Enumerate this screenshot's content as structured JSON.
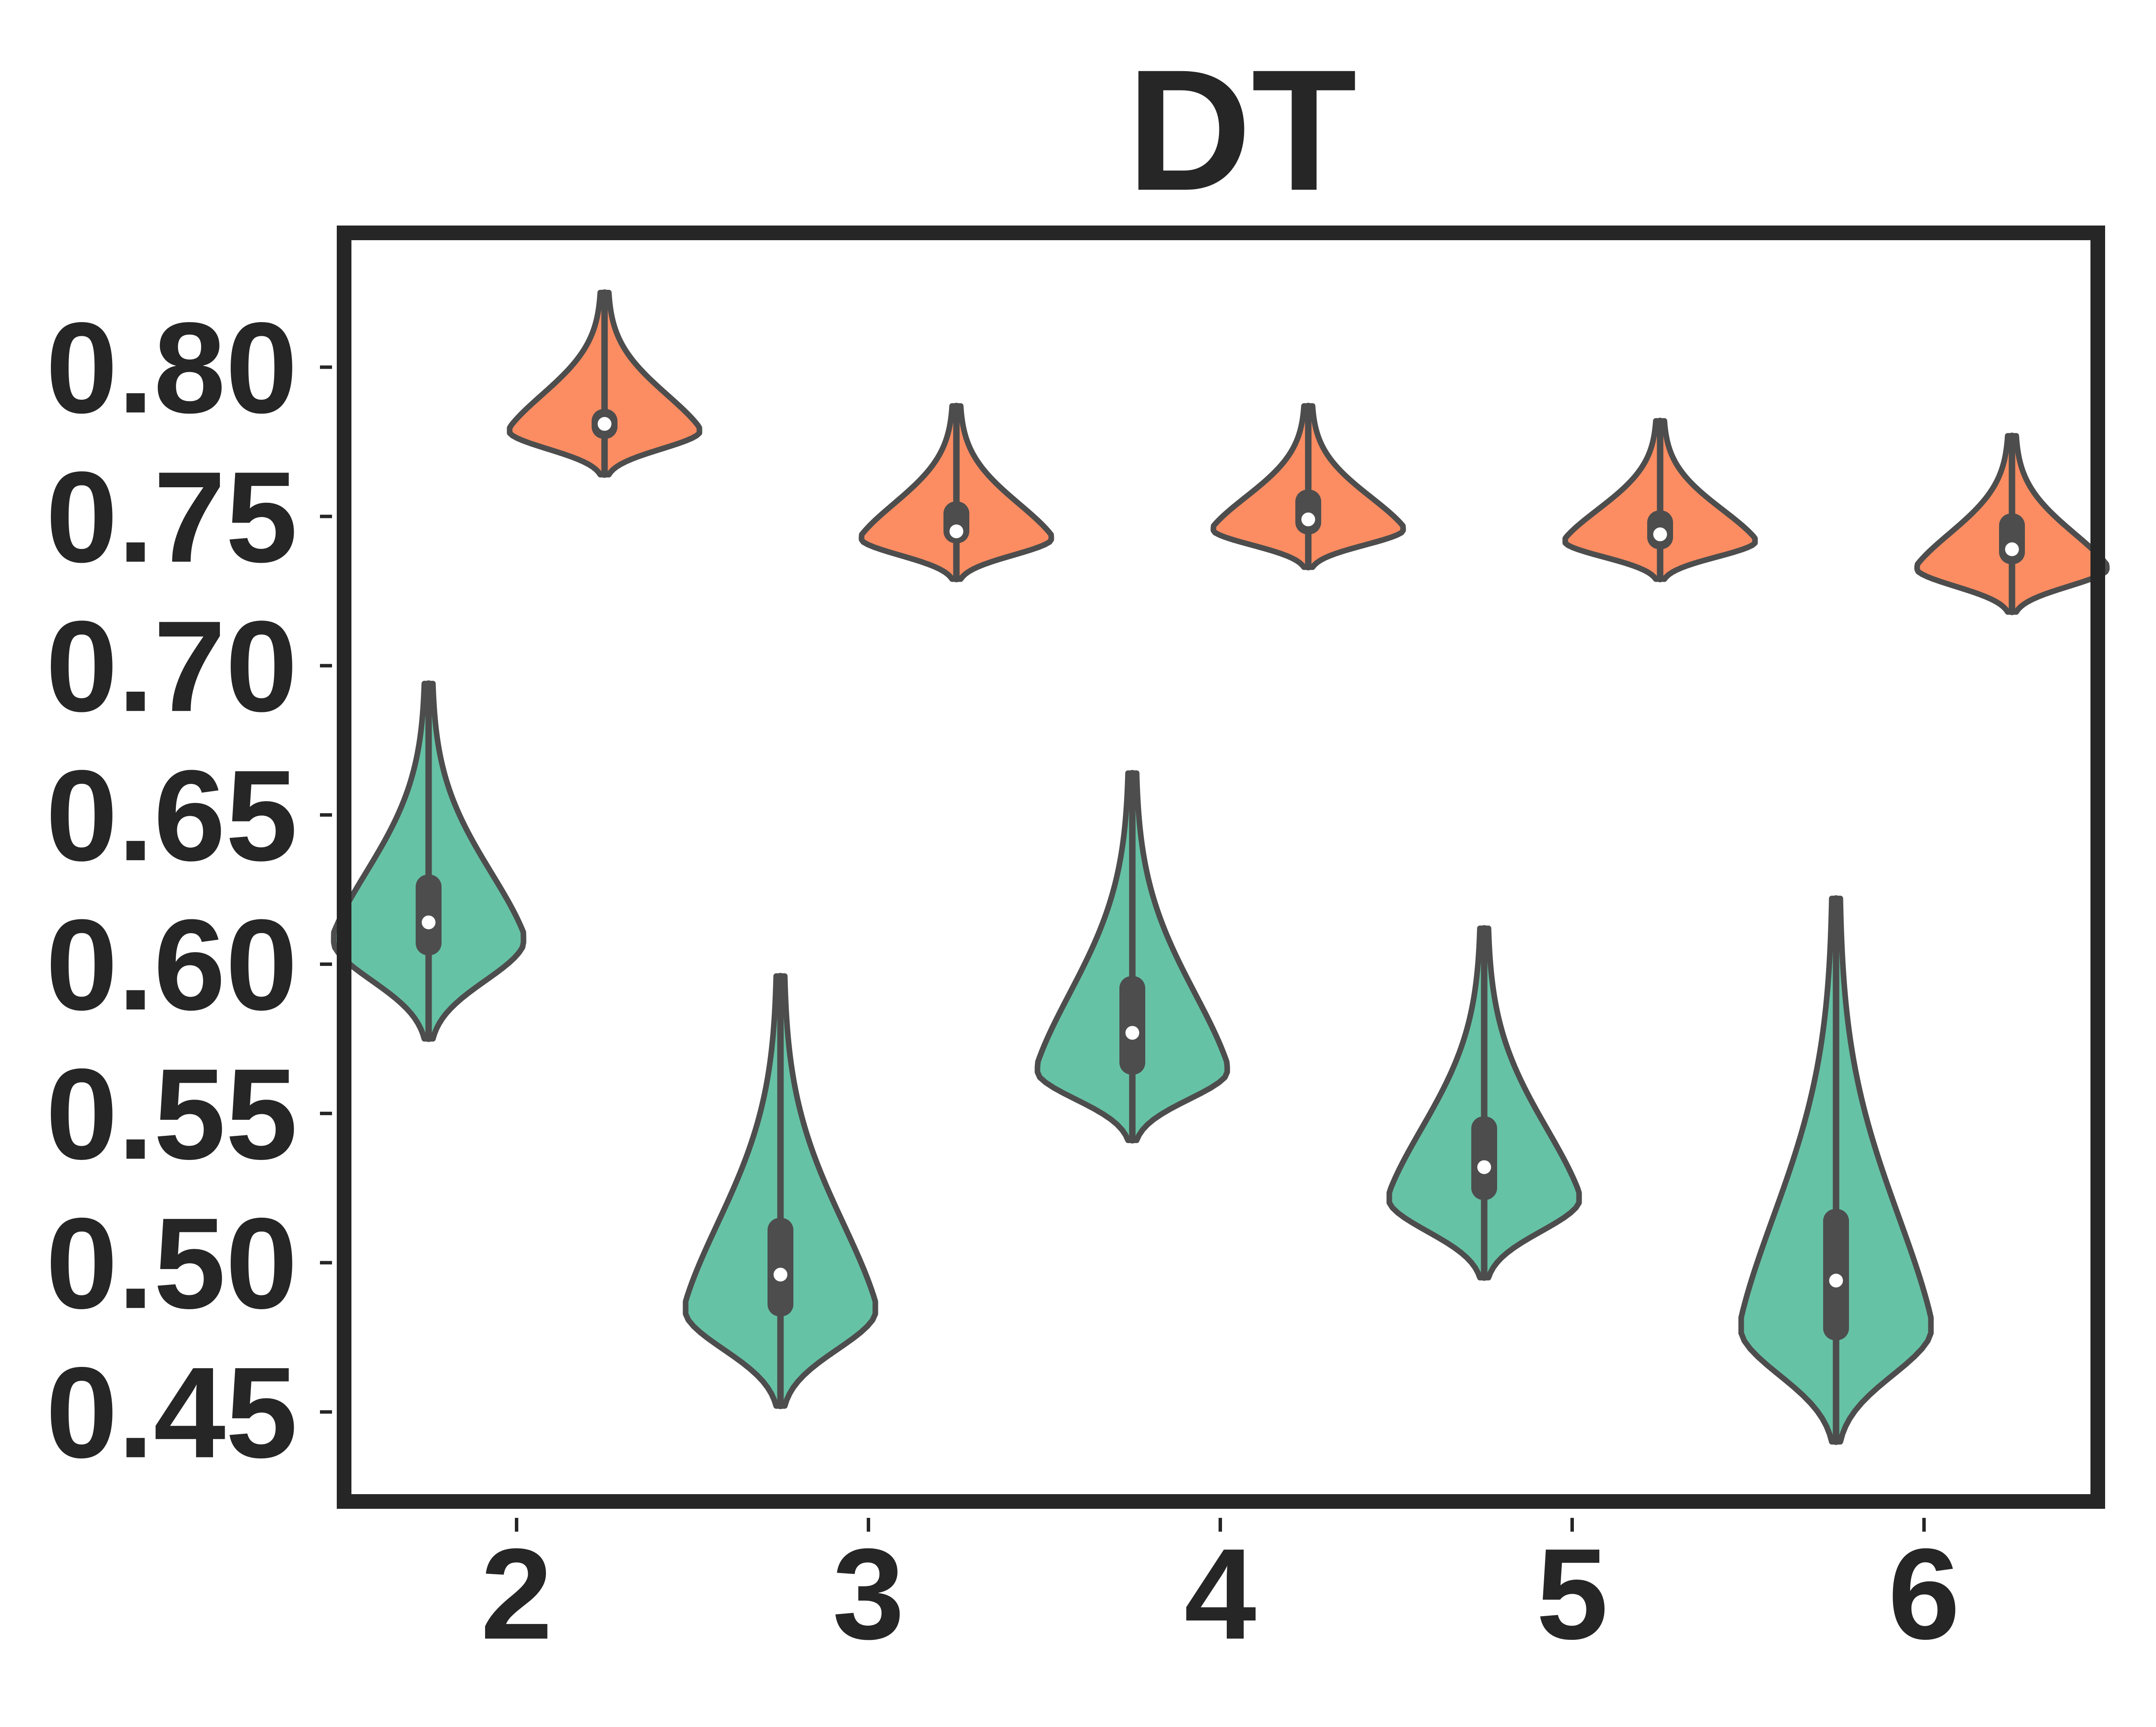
{
  "chart_data": {
    "type": "violin",
    "title": "DT",
    "xlabel": "",
    "ylabel": "",
    "categories": [
      "2",
      "3",
      "4",
      "5",
      "6"
    ],
    "ylim": [
      0.42,
      0.845
    ],
    "yticks": [
      "0.45",
      "0.50",
      "0.55",
      "0.60",
      "0.65",
      "0.70",
      "0.75",
      "0.80"
    ],
    "grid": false,
    "legend": "none",
    "colors": {
      "series_a": "#66c2a5",
      "series_b": "#fc8d62",
      "outline": "#4d4d4d",
      "frame": "#262626",
      "median_dot": "#ffffff"
    },
    "series": [
      {
        "color": "#66c2a5",
        "violins": [
          {
            "category": "2",
            "min": 0.575,
            "q1": 0.603,
            "median": 0.614,
            "q3": 0.63,
            "max": 0.694,
            "kde_peak": 0.609
          },
          {
            "category": "3",
            "min": 0.452,
            "q1": 0.482,
            "median": 0.496,
            "q3": 0.515,
            "max": 0.596,
            "kde_peak": 0.485
          },
          {
            "category": "4",
            "min": 0.541,
            "q1": 0.563,
            "median": 0.577,
            "q3": 0.596,
            "max": 0.664,
            "kde_peak": 0.565
          },
          {
            "category": "5",
            "min": 0.495,
            "q1": 0.521,
            "median": 0.532,
            "q3": 0.549,
            "max": 0.612,
            "kde_peak": 0.522
          },
          {
            "category": "6",
            "min": 0.44,
            "q1": 0.474,
            "median": 0.494,
            "q3": 0.518,
            "max": 0.622,
            "kde_peak": 0.479
          }
        ]
      },
      {
        "color": "#fc8d62",
        "violins": [
          {
            "category": "2",
            "min": 0.764,
            "q1": 0.776,
            "median": 0.781,
            "q3": 0.786,
            "max": 0.825,
            "kde_peak": 0.779
          },
          {
            "category": "3",
            "min": 0.729,
            "q1": 0.741,
            "median": 0.745,
            "q3": 0.755,
            "max": 0.787,
            "kde_peak": 0.743
          },
          {
            "category": "4",
            "min": 0.733,
            "q1": 0.744,
            "median": 0.749,
            "q3": 0.759,
            "max": 0.787,
            "kde_peak": 0.746
          },
          {
            "category": "5",
            "min": 0.729,
            "q1": 0.739,
            "median": 0.744,
            "q3": 0.752,
            "max": 0.782,
            "kde_peak": 0.742
          },
          {
            "category": "6",
            "min": 0.718,
            "q1": 0.734,
            "median": 0.739,
            "q3": 0.751,
            "max": 0.777,
            "kde_peak": 0.733
          }
        ]
      }
    ]
  }
}
